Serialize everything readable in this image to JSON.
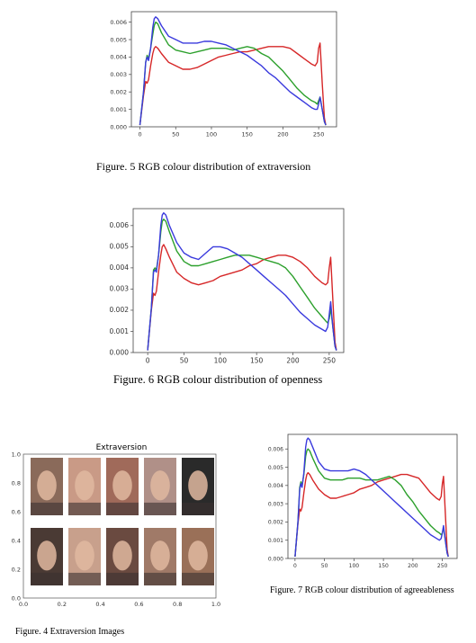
{
  "figures": {
    "fig5_caption": "Figure. 5 RGB colour distribution of extraversion",
    "fig6_caption": "Figure. 6 RGB colour distribution of openness",
    "fig7_caption": "Figure. 7 RGB colour distribution of agreeableness",
    "fig4_caption": "Figure. 4 Extraversion Images",
    "fig4_title": "Extraversion"
  },
  "chart_data": [
    {
      "id": "fig5",
      "type": "line",
      "x": [
        0,
        5,
        8,
        10,
        12,
        15,
        18,
        20,
        22,
        25,
        30,
        40,
        50,
        60,
        70,
        80,
        90,
        100,
        110,
        120,
        130,
        140,
        150,
        160,
        170,
        180,
        190,
        200,
        210,
        220,
        230,
        240,
        245,
        248,
        250,
        252,
        255,
        258,
        260
      ],
      "series": [
        {
          "color": "#d62728",
          "values": [
            0.0001,
            0.0018,
            0.0026,
            0.0025,
            0.0027,
            0.0035,
            0.0042,
            0.0045,
            0.0046,
            0.0045,
            0.0042,
            0.0037,
            0.0035,
            0.0033,
            0.0033,
            0.0034,
            0.0036,
            0.0038,
            0.004,
            0.0041,
            0.0042,
            0.0043,
            0.0043,
            0.0044,
            0.0045,
            0.0046,
            0.0046,
            0.0046,
            0.0045,
            0.0042,
            0.0039,
            0.0036,
            0.0035,
            0.0037,
            0.0045,
            0.0048,
            0.0025,
            0.0005,
            0.0001
          ]
        },
        {
          "color": "#2ca02c",
          "values": [
            0.0001,
            0.002,
            0.0037,
            0.0041,
            0.0039,
            0.0045,
            0.0053,
            0.0058,
            0.006,
            0.0059,
            0.0054,
            0.0047,
            0.0044,
            0.0043,
            0.0042,
            0.0043,
            0.0044,
            0.0045,
            0.0045,
            0.0045,
            0.0044,
            0.0045,
            0.0046,
            0.0045,
            0.0042,
            0.004,
            0.0036,
            0.0032,
            0.0027,
            0.0022,
            0.0018,
            0.0015,
            0.0014,
            0.0013,
            0.0015,
            0.0017,
            0.001,
            0.0003,
            0.0001
          ]
        },
        {
          "color": "#3a3add",
          "values": [
            0.0001,
            0.002,
            0.0037,
            0.004,
            0.0038,
            0.0045,
            0.0057,
            0.0062,
            0.0063,
            0.0062,
            0.0058,
            0.0052,
            0.005,
            0.0048,
            0.0048,
            0.0048,
            0.0049,
            0.0049,
            0.0048,
            0.0047,
            0.0045,
            0.0043,
            0.0041,
            0.0038,
            0.0035,
            0.0031,
            0.0028,
            0.0024,
            0.002,
            0.0017,
            0.0014,
            0.0011,
            0.001,
            0.001,
            0.0013,
            0.0017,
            0.001,
            0.0003,
            0.0001
          ]
        }
      ],
      "xticks": [
        0,
        50,
        100,
        150,
        200,
        250
      ],
      "yticks": [
        0.0,
        0.001,
        0.002,
        0.003,
        0.004,
        0.005,
        0.006
      ],
      "xlim": [
        -12,
        275
      ],
      "ylim": [
        0,
        0.0066
      ]
    },
    {
      "id": "fig6",
      "type": "line",
      "x": [
        0,
        5,
        8,
        10,
        12,
        15,
        18,
        20,
        22,
        25,
        30,
        40,
        50,
        60,
        70,
        80,
        90,
        100,
        110,
        120,
        130,
        140,
        150,
        160,
        170,
        180,
        190,
        200,
        210,
        220,
        230,
        240,
        245,
        248,
        250,
        252,
        255,
        258,
        260
      ],
      "series": [
        {
          "color": "#d62728",
          "values": [
            0.0001,
            0.002,
            0.0028,
            0.0027,
            0.0029,
            0.0038,
            0.0046,
            0.005,
            0.0051,
            0.0049,
            0.0045,
            0.0038,
            0.0035,
            0.0033,
            0.0032,
            0.0033,
            0.0034,
            0.0036,
            0.0037,
            0.0038,
            0.0039,
            0.0041,
            0.0042,
            0.0044,
            0.0045,
            0.0046,
            0.0046,
            0.0045,
            0.0043,
            0.004,
            0.0036,
            0.0033,
            0.0032,
            0.0033,
            0.004,
            0.0045,
            0.0025,
            0.0005,
            0.0001
          ]
        },
        {
          "color": "#2ca02c",
          "values": [
            0.0001,
            0.0021,
            0.0039,
            0.004,
            0.0039,
            0.0046,
            0.0057,
            0.0062,
            0.0063,
            0.0062,
            0.0057,
            0.0048,
            0.0043,
            0.0041,
            0.0041,
            0.0042,
            0.0043,
            0.0044,
            0.0045,
            0.0046,
            0.0046,
            0.0046,
            0.0045,
            0.0044,
            0.0043,
            0.0042,
            0.004,
            0.0036,
            0.0031,
            0.0026,
            0.0021,
            0.0017,
            0.0015,
            0.0014,
            0.0016,
            0.0021,
            0.0012,
            0.0003,
            0.0001
          ]
        },
        {
          "color": "#3a3add",
          "values": [
            0.0001,
            0.0021,
            0.0038,
            0.0039,
            0.0038,
            0.0046,
            0.006,
            0.0065,
            0.0066,
            0.0065,
            0.006,
            0.0052,
            0.0047,
            0.0045,
            0.0044,
            0.0047,
            0.005,
            0.005,
            0.0049,
            0.0047,
            0.0045,
            0.0042,
            0.0039,
            0.0036,
            0.0033,
            0.003,
            0.0027,
            0.0023,
            0.0019,
            0.0016,
            0.0013,
            0.0011,
            0.001,
            0.0012,
            0.0018,
            0.0024,
            0.0012,
            0.0003,
            0.0001
          ]
        }
      ],
      "xticks": [
        0,
        50,
        100,
        150,
        200,
        250
      ],
      "yticks": [
        0.0,
        0.001,
        0.002,
        0.003,
        0.004,
        0.005,
        0.006
      ],
      "xlim": [
        -20,
        270
      ],
      "ylim": [
        0,
        0.0068
      ]
    },
    {
      "id": "fig7",
      "type": "line",
      "x": [
        0,
        5,
        8,
        10,
        12,
        15,
        18,
        20,
        22,
        25,
        30,
        40,
        50,
        60,
        70,
        80,
        90,
        100,
        110,
        120,
        130,
        140,
        150,
        160,
        170,
        180,
        190,
        200,
        210,
        220,
        230,
        240,
        245,
        248,
        250,
        252,
        255,
        258,
        260
      ],
      "series": [
        {
          "color": "#d62728",
          "values": [
            0.0001,
            0.0019,
            0.0027,
            0.0026,
            0.0028,
            0.0036,
            0.0043,
            0.0046,
            0.0047,
            0.0046,
            0.0043,
            0.0038,
            0.0035,
            0.0033,
            0.0033,
            0.0034,
            0.0035,
            0.0036,
            0.0038,
            0.0039,
            0.004,
            0.0042,
            0.0043,
            0.0044,
            0.0045,
            0.0046,
            0.0046,
            0.0045,
            0.0044,
            0.004,
            0.0036,
            0.0033,
            0.0032,
            0.0034,
            0.0041,
            0.0045,
            0.0025,
            0.0005,
            0.0001
          ]
        },
        {
          "color": "#2ca02c",
          "values": [
            0.0001,
            0.002,
            0.0039,
            0.0042,
            0.004,
            0.0046,
            0.0056,
            0.0059,
            0.006,
            0.0059,
            0.0055,
            0.0048,
            0.0044,
            0.0043,
            0.0043,
            0.0043,
            0.0044,
            0.0044,
            0.0044,
            0.0043,
            0.0043,
            0.0043,
            0.0044,
            0.0045,
            0.0043,
            0.004,
            0.0035,
            0.0031,
            0.0026,
            0.0022,
            0.0018,
            0.0015,
            0.0014,
            0.0013,
            0.0014,
            0.0017,
            0.001,
            0.0003,
            0.0001
          ]
        },
        {
          "color": "#3a3add",
          "values": [
            0.0001,
            0.002,
            0.0038,
            0.0041,
            0.0039,
            0.0047,
            0.0061,
            0.0065,
            0.0066,
            0.0065,
            0.0061,
            0.0053,
            0.0049,
            0.0048,
            0.0048,
            0.0048,
            0.0048,
            0.0049,
            0.0048,
            0.0046,
            0.0043,
            0.004,
            0.0037,
            0.0034,
            0.0031,
            0.0028,
            0.0025,
            0.0022,
            0.0019,
            0.0016,
            0.0013,
            0.0011,
            0.001,
            0.0011,
            0.0014,
            0.0018,
            0.001,
            0.0003,
            0.0001
          ]
        }
      ],
      "xticks": [
        0,
        50,
        100,
        150,
        200,
        250
      ],
      "yticks": [
        0.0,
        0.001,
        0.002,
        0.003,
        0.004,
        0.005,
        0.006
      ],
      "xlim": [
        -12,
        275
      ],
      "ylim": [
        0,
        0.0068
      ]
    },
    {
      "id": "fig4",
      "type": "image-grid",
      "title": "Extraversion",
      "rows": 2,
      "cols": 5,
      "xticks": [
        "0.0",
        "0.2",
        "0.4",
        "0.6",
        "0.8",
        "1.0"
      ],
      "yticks": [
        "0.0",
        "0.2",
        "0.4",
        "0.6",
        "0.8",
        "1.0"
      ],
      "thumb_colors": [
        [
          "#8a6a5a",
          "#c99a86",
          "#a06a5a",
          "#b09088",
          "#2a2a2a"
        ],
        [
          "#4a3a34",
          "#c8a08c",
          "#6a4a40",
          "#a07a68",
          "#9a7058"
        ]
      ]
    }
  ]
}
